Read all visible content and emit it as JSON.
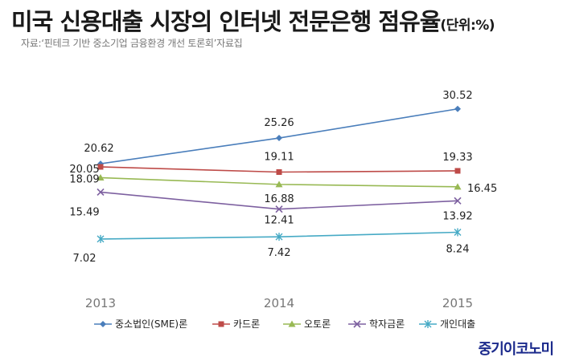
{
  "header": {
    "title": "미국 신용대출 시장의 인터넷 전문은행 점유율",
    "unit": "(단위:%)",
    "source": "자료:‘핀테크 기반 중소기업 금융환경 개선 토론회’자료집"
  },
  "brand": "중기이코노미",
  "chart_data": {
    "type": "line",
    "title": "미국 신용대출 시장의 인터넷 전문은행 점유율",
    "unit": "%",
    "categories": [
      "2013",
      "2014",
      "2015"
    ],
    "grid": false,
    "legend_position": "bottom",
    "series": [
      {
        "name": "중소법인(SME)론",
        "values": [
          20.62,
          25.26,
          30.52
        ],
        "color": "#4a7ebb",
        "marker": "diamond"
      },
      {
        "name": "카드론",
        "values": [
          20.05,
          19.11,
          19.33
        ],
        "color": "#be4b48",
        "marker": "square"
      },
      {
        "name": "오토론",
        "values": [
          18.09,
          16.88,
          16.45
        ],
        "color": "#98b954",
        "marker": "triangle"
      },
      {
        "name": "학자금론",
        "values": [
          15.49,
          12.41,
          13.92
        ],
        "color": "#7d60a0",
        "marker": "x"
      },
      {
        "name": "개인대출",
        "values": [
          7.02,
          7.42,
          8.24
        ],
        "color": "#46aac5",
        "marker": "star"
      }
    ]
  }
}
